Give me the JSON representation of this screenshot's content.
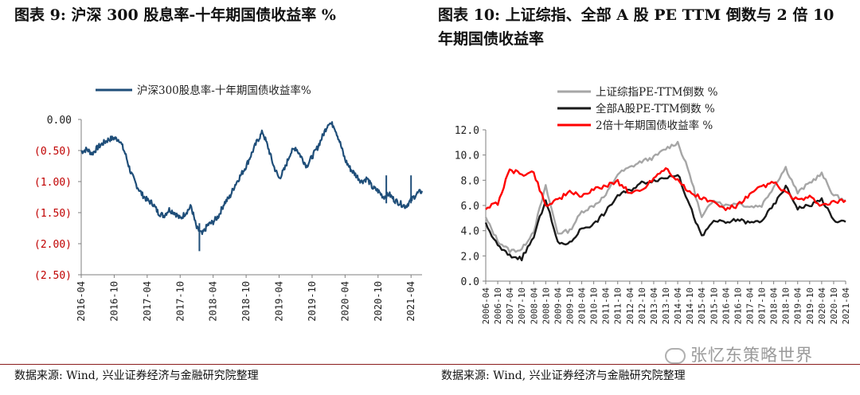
{
  "left": {
    "title": "图表 9:  沪深 300 股息率-十年期国债收益率  %",
    "source": "数据来源:  Wind, 兴业证券经济与金融研究院整理"
  },
  "right": {
    "title": "图表 10:  上证综指、全部 A 股 PE TTM 倒数与 2 倍 10 年期国债收益率",
    "source": "数据来源:  Wind, 兴业证券经济与金融研究院整理",
    "watermark": "张忆东策略世界"
  },
  "colors": {
    "navy": "#1f4e79",
    "gray": "#a6a6a6",
    "black": "#1a1a1a",
    "red": "#ff0000",
    "neg": "#c00000"
  },
  "chart_data": [
    {
      "type": "line",
      "title": "",
      "xlabel": "",
      "ylabel": "",
      "ylim": [
        -2.5,
        0.0
      ],
      "yticks": [
        0.0,
        -0.5,
        -1.0,
        -1.5,
        -2.0,
        -2.5
      ],
      "ytick_labels": [
        "0.00",
        "(0.50)",
        "(1.00)",
        "(1.50)",
        "(2.00)",
        "(2.50)"
      ],
      "xtick_labels": [
        "2016-04",
        "2016-10",
        "2017-04",
        "2017-10",
        "2018-04",
        "2018-10",
        "2019-04",
        "2019-10",
        "2020-04",
        "2020-10",
        "2021-04"
      ],
      "legend": "top",
      "grid": false,
      "series": [
        {
          "name": "沪深300股息率-十年期国债收益率%",
          "x_months": [
            0,
            1,
            2,
            3,
            4,
            5,
            6,
            7,
            8,
            9,
            10,
            11,
            12,
            13,
            14,
            15,
            16,
            17,
            18,
            19,
            20,
            21,
            22,
            23,
            24,
            25,
            26,
            27,
            28,
            29,
            30,
            31,
            32,
            33,
            34,
            35,
            36,
            37,
            38,
            39,
            40,
            41,
            42,
            43,
            44,
            45,
            46,
            47,
            48,
            49,
            50,
            51,
            52,
            53,
            54,
            55,
            56,
            57,
            58,
            59,
            60,
            61,
            62
          ],
          "values": [
            -0.52,
            -0.48,
            -0.55,
            -0.45,
            -0.38,
            -0.32,
            -0.3,
            -0.33,
            -0.55,
            -0.85,
            -1.05,
            -1.2,
            -1.3,
            -1.35,
            -1.5,
            -1.55,
            -1.45,
            -1.5,
            -1.6,
            -1.5,
            -1.4,
            -1.75,
            -1.85,
            -1.7,
            -1.65,
            -1.55,
            -1.35,
            -1.25,
            -1.05,
            -0.9,
            -0.75,
            -0.55,
            -0.35,
            -0.2,
            -0.45,
            -0.75,
            -0.95,
            -0.8,
            -0.55,
            -0.45,
            -0.6,
            -0.75,
            -0.6,
            -0.45,
            -0.25,
            -0.05,
            -0.1,
            -0.35,
            -0.65,
            -0.8,
            -0.9,
            -1.0,
            -0.95,
            -1.1,
            -1.15,
            -1.25,
            -1.2,
            -1.3,
            -1.35,
            -1.4,
            -1.3,
            -1.2,
            -1.15
          ]
        }
      ]
    },
    {
      "type": "line",
      "title": "",
      "xlabel": "",
      "ylabel": "",
      "ylim": [
        0.0,
        12.0
      ],
      "yticks": [
        0.0,
        2.0,
        4.0,
        6.0,
        8.0,
        10.0,
        12.0
      ],
      "ytick_labels": [
        "0.0",
        "2.0",
        "4.0",
        "6.0",
        "8.0",
        "10.0",
        "12.0"
      ],
      "xtick_labels": [
        "2006-04",
        "2006-10",
        "2007-04",
        "2007-10",
        "2008-04",
        "2008-10",
        "2009-04",
        "2009-10",
        "2010-04",
        "2010-10",
        "2011-04",
        "2011-10",
        "2012-04",
        "2012-10",
        "2013-04",
        "2013-10",
        "2014-04",
        "2014-10",
        "2015-04",
        "2015-10",
        "2016-04",
        "2016-10",
        "2017-04",
        "2017-10",
        "2018-04",
        "2018-10",
        "2019-04",
        "2019-10",
        "2020-04",
        "2020-10",
        "2021-04"
      ],
      "legend": "top",
      "grid": false,
      "series": [
        {
          "name": "上证综指PE-TTM倒数 %",
          "x_halfyears": [
            0,
            1,
            2,
            3,
            4,
            5,
            6,
            7,
            8,
            9,
            10,
            11,
            12,
            13,
            14,
            15,
            16,
            17,
            18,
            19,
            20,
            21,
            22,
            23,
            24,
            25,
            26,
            27,
            28,
            29,
            30
          ],
          "values": [
            5.0,
            3.2,
            2.4,
            2.5,
            4.0,
            7.5,
            3.8,
            4.0,
            5.5,
            6.0,
            6.8,
            8.5,
            9.0,
            9.5,
            9.8,
            10.5,
            11.0,
            8.5,
            5.0,
            6.5,
            6.0,
            6.2,
            5.9,
            6.0,
            7.5,
            9.0,
            7.0,
            7.8,
            8.5,
            6.8,
            6.4
          ]
        },
        {
          "name": "全部A股PE-TTM倒数 %",
          "x_halfyears": [
            0,
            1,
            2,
            3,
            4,
            5,
            6,
            7,
            8,
            9,
            10,
            11,
            12,
            13,
            14,
            15,
            16,
            17,
            18,
            19,
            20,
            21,
            22,
            23,
            24,
            25,
            26,
            27,
            28,
            29,
            30
          ],
          "values": [
            4.5,
            2.8,
            2.0,
            1.8,
            3.5,
            6.5,
            3.0,
            3.0,
            4.2,
            4.5,
            5.5,
            6.8,
            7.2,
            7.8,
            8.0,
            8.2,
            8.5,
            6.0,
            3.5,
            4.8,
            4.6,
            4.9,
            4.6,
            4.8,
            6.0,
            7.5,
            5.8,
            6.0,
            6.5,
            4.8,
            4.7
          ]
        },
        {
          "name": "2倍十年期国债收益率 %",
          "x_halfyears": [
            0,
            1,
            2,
            3,
            4,
            5,
            6,
            7,
            8,
            9,
            10,
            11,
            12,
            13,
            14,
            15,
            16,
            17,
            18,
            19,
            20,
            21,
            22,
            23,
            24,
            25,
            26,
            27,
            28,
            29,
            30
          ],
          "values": [
            5.8,
            6.2,
            8.8,
            8.5,
            8.6,
            6.0,
            6.5,
            7.0,
            6.8,
            7.2,
            7.6,
            7.9,
            7.0,
            7.2,
            8.2,
            9.0,
            8.0,
            7.0,
            6.6,
            6.2,
            5.7,
            6.0,
            6.8,
            7.5,
            7.8,
            7.0,
            6.4,
            6.6,
            6.0,
            6.2,
            6.4
          ]
        }
      ]
    }
  ]
}
